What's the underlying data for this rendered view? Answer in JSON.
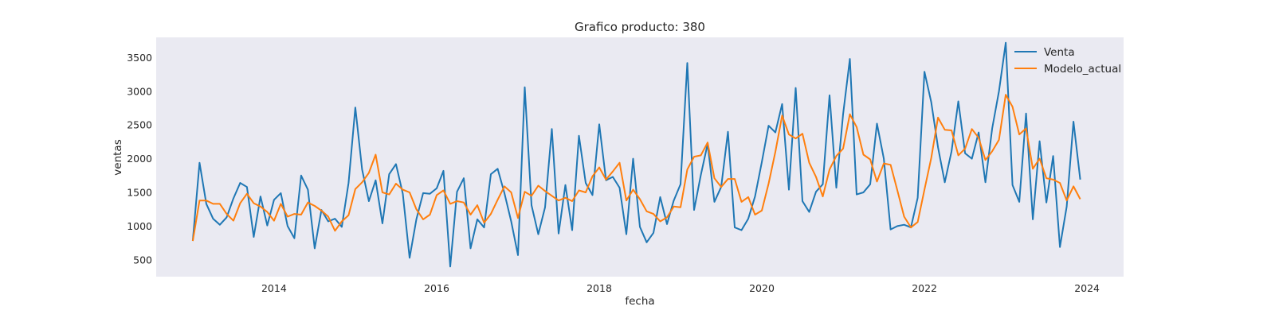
{
  "chart_data": {
    "type": "line",
    "title": "Grafico producto: 380",
    "xlabel": "fecha",
    "ylabel": "ventas",
    "x_start": "2013-01",
    "x_step": "month",
    "xlim": [
      2012.55,
      2024.45
    ],
    "ylim": [
      250,
      3800
    ],
    "xticks": [
      2014,
      2016,
      2018,
      2020,
      2022,
      2024
    ],
    "xtick_labels": [
      "2014",
      "2016",
      "2018",
      "2020",
      "2022",
      "2024"
    ],
    "yticks": [
      500,
      1000,
      1500,
      2000,
      2500,
      3000,
      3500
    ],
    "ytick_labels": [
      "500",
      "1000",
      "1500",
      "2000",
      "2500",
      "3000",
      "3500"
    ],
    "grid": false,
    "legend_position": "top-right",
    "background": "#eaeaf2",
    "series": [
      {
        "name": "Venta",
        "color": "#1f77b4",
        "values": [
          780,
          1940,
          1330,
          1110,
          1020,
          1130,
          1410,
          1640,
          1580,
          840,
          1440,
          1010,
          1390,
          1490,
          1000,
          820,
          1750,
          1540,
          670,
          1240,
          1070,
          1110,
          990,
          1640,
          2760,
          1840,
          1370,
          1680,
          1040,
          1770,
          1920,
          1480,
          530,
          1100,
          1490,
          1480,
          1560,
          1820,
          400,
          1510,
          1710,
          670,
          1100,
          980,
          1770,
          1850,
          1490,
          1070,
          570,
          3060,
          1310,
          880,
          1280,
          2440,
          890,
          1610,
          940,
          2340,
          1640,
          1460,
          2510,
          1680,
          1730,
          1570,
          880,
          2000,
          990,
          760,
          900,
          1430,
          1030,
          1380,
          1620,
          3420,
          1240,
          1760,
          2220,
          1360,
          1580,
          2400,
          980,
          940,
          1110,
          1440,
          1950,
          2490,
          2390,
          2810,
          1540,
          3050,
          1370,
          1210,
          1510,
          1620,
          2940,
          1570,
          2660,
          3480,
          1470,
          1500,
          1620,
          2520,
          2000,
          950,
          1000,
          1020,
          980,
          1420,
          3290,
          2840,
          2170,
          1650,
          2110,
          2850,
          2080,
          2000,
          2390,
          1650,
          2450,
          3000,
          3720,
          1610,
          1360,
          2670,
          1100,
          2260,
          1350,
          2040,
          690,
          1290,
          2550,
          1690
        ]
      },
      {
        "name": "Modelo_actual",
        "color": "#ff7f0e",
        "values": [
          780,
          1380,
          1380,
          1330,
          1330,
          1180,
          1080,
          1340,
          1480,
          1340,
          1290,
          1210,
          1080,
          1330,
          1140,
          1180,
          1170,
          1350,
          1300,
          1230,
          1140,
          930,
          1070,
          1160,
          1550,
          1650,
          1790,
          2060,
          1500,
          1470,
          1630,
          1540,
          1500,
          1250,
          1100,
          1170,
          1460,
          1530,
          1330,
          1370,
          1350,
          1170,
          1310,
          1050,
          1180,
          1390,
          1590,
          1500,
          1120,
          1510,
          1450,
          1600,
          1520,
          1450,
          1380,
          1420,
          1370,
          1530,
          1500,
          1740,
          1870,
          1690,
          1810,
          1940,
          1380,
          1540,
          1400,
          1220,
          1180,
          1070,
          1130,
          1290,
          1280,
          1840,
          2030,
          2050,
          2240,
          1710,
          1580,
          1700,
          1700,
          1360,
          1430,
          1170,
          1230,
          1630,
          2100,
          2640,
          2360,
          2300,
          2370,
          1940,
          1730,
          1440,
          1840,
          2040,
          2150,
          2660,
          2470,
          2060,
          1990,
          1660,
          1930,
          1910,
          1530,
          1140,
          980,
          1060,
          1540,
          2010,
          2610,
          2430,
          2420,
          2050,
          2150,
          2440,
          2310,
          1980,
          2110,
          2280,
          2950,
          2770,
          2360,
          2450,
          1850,
          2000,
          1710,
          1690,
          1640,
          1380,
          1590,
          1400
        ]
      }
    ]
  }
}
